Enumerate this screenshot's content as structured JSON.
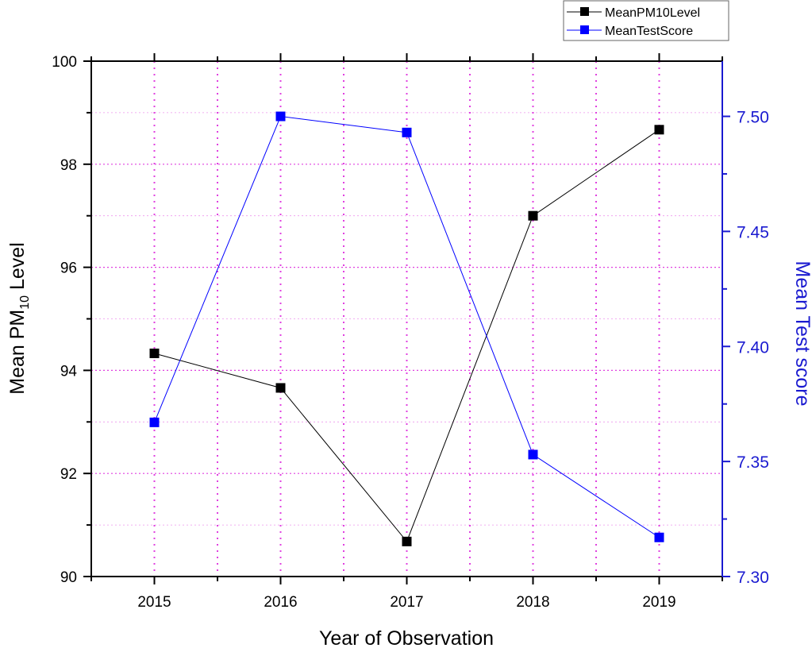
{
  "chart_data": {
    "type": "line",
    "title": "",
    "xlabel": "Year of Observation",
    "ylabel_left": {
      "main": "Mean PM",
      "sub": "10",
      "tail": " Level"
    },
    "ylabel_right": "Mean Test score",
    "x": [
      2015,
      2016,
      2017,
      2018,
      2019
    ],
    "x_tick_labels": [
      "2015",
      "2016",
      "2017",
      "2018",
      "2019"
    ],
    "xlim": [
      2014.5,
      2019.5
    ],
    "ylim_left": [
      90,
      100
    ],
    "ylim_right": [
      7.3,
      7.524
    ],
    "y_left_ticks": [
      "90",
      "92",
      "94",
      "96",
      "98",
      "100"
    ],
    "y_right_ticks": [
      "7.30",
      "7.35",
      "7.40",
      "7.45",
      "7.50"
    ],
    "grid": true,
    "legend_position": "top-right",
    "series": [
      {
        "name": "MeanPM10Level",
        "axis": "left",
        "color": "#000000",
        "values": [
          94.33,
          93.66,
          90.68,
          97.0,
          98.67
        ]
      },
      {
        "name": "MeanTestScore",
        "axis": "right",
        "color": "#0000ff",
        "values": [
          7.367,
          7.5,
          7.493,
          7.353,
          7.317
        ]
      }
    ],
    "right_axis_color": "#1a1ad0",
    "grid_color": "#e040e0"
  }
}
